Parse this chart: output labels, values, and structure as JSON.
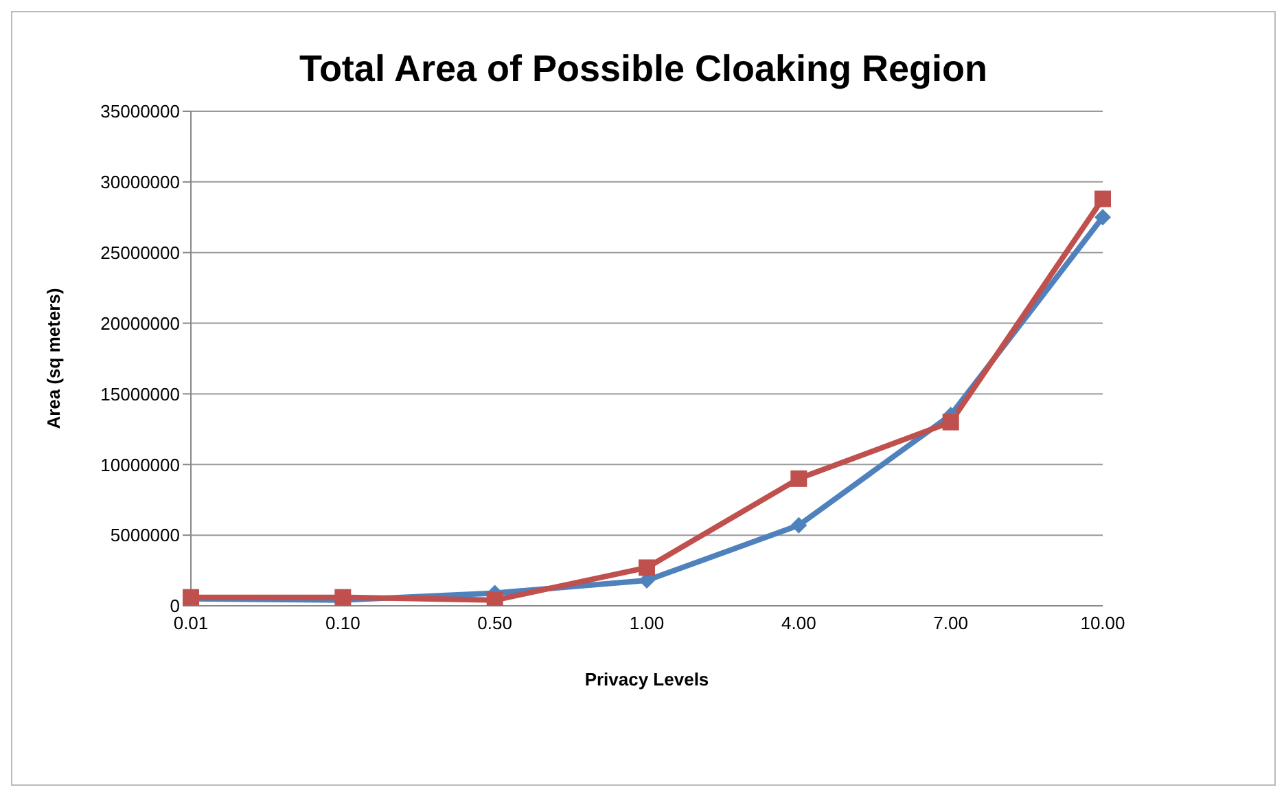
{
  "chart_data": {
    "type": "line",
    "title": "Total Area of Possible Cloaking Region",
    "xlabel": "Privacy Levels",
    "ylabel": "Area (sq meters)",
    "categories": [
      "0.01",
      "0.10",
      "0.50",
      "1.00",
      "4.00",
      "7.00",
      "10.00"
    ],
    "series": [
      {
        "color": "#4f81bd",
        "marker": "diamond",
        "values": [
          500000,
          400000,
          900000,
          1800000,
          5700000,
          13500000,
          27500000
        ]
      },
      {
        "color": "#c0504d",
        "marker": "square",
        "values": [
          600000,
          600000,
          400000,
          2700000,
          9000000,
          13000000,
          28800000
        ]
      }
    ],
    "ylim": [
      0,
      35000000
    ],
    "yticks": [
      0,
      5000000,
      10000000,
      15000000,
      20000000,
      25000000,
      30000000,
      35000000
    ],
    "grid": "y"
  }
}
